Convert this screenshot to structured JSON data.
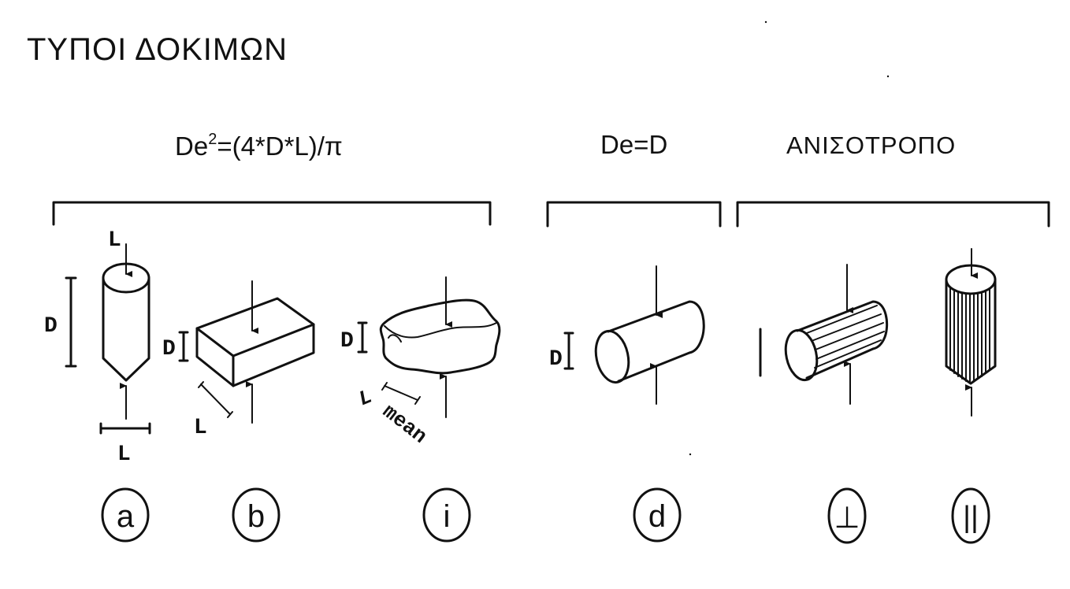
{
  "title": "ΤΥΠΟΙ ΔΟΚΙΜΩΝ",
  "groups": {
    "formula": {
      "base": "De",
      "sup": "2",
      "rest": "=(4*D*L)/π"
    },
    "diametral": "De=D",
    "anisotropic": "ΑΝΙΣΟΤΡΟΠΟ"
  },
  "dimension_labels": {
    "a_load": "L",
    "a_height": "D",
    "a_length": "L",
    "b_height": "D",
    "b_length": "L",
    "i_height": "D",
    "i_length": "L",
    "i_length_sub": "mean",
    "d_height": "D"
  },
  "test_labels": {
    "a": "a",
    "b": "b",
    "i": "i",
    "d": "d",
    "perpendicular": "⊥",
    "parallel": "||"
  }
}
